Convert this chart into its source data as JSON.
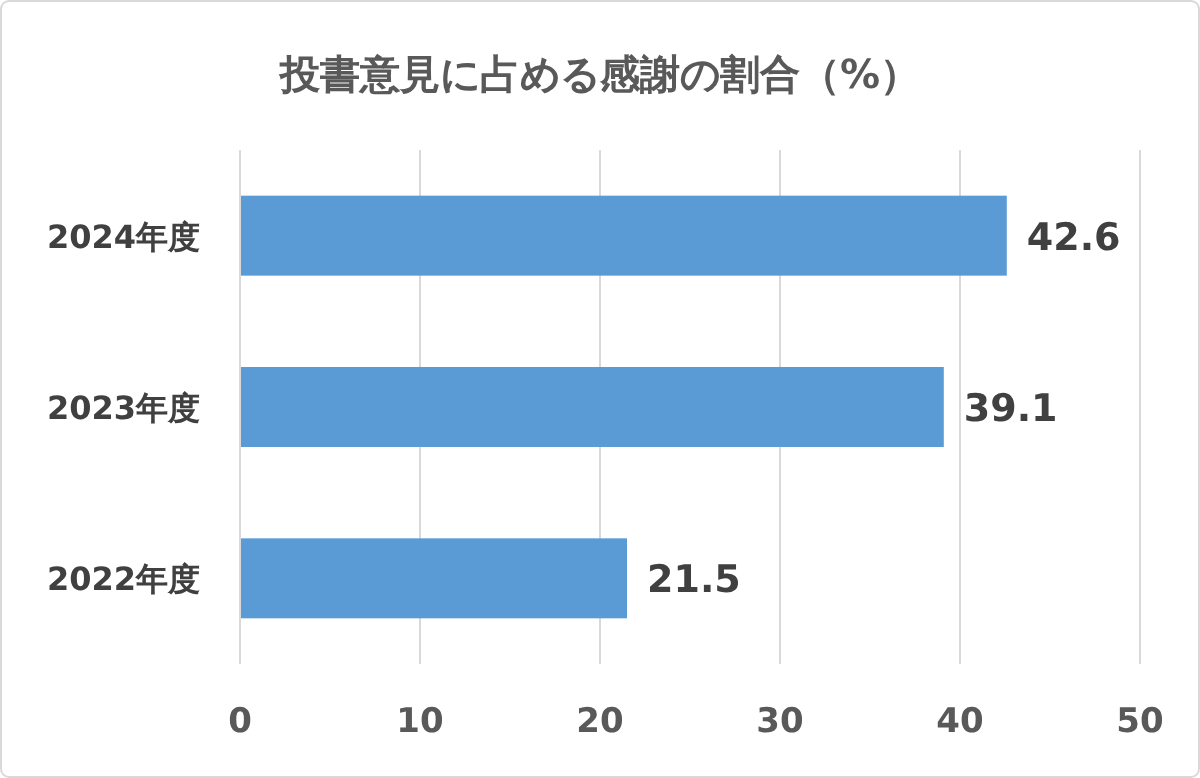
{
  "chart_data": {
    "type": "bar",
    "orientation": "horizontal",
    "title": "投書意見に占める感謝の割合（%）",
    "categories": [
      "2024年度",
      "2023年度",
      "2022年度"
    ],
    "values": [
      42.6,
      39.1,
      21.5
    ],
    "color": "#5b9bd5",
    "xlim": [
      0,
      50
    ],
    "xticks": [
      0,
      10,
      20,
      30,
      40,
      50
    ],
    "grid": "x",
    "data_labels": true
  }
}
